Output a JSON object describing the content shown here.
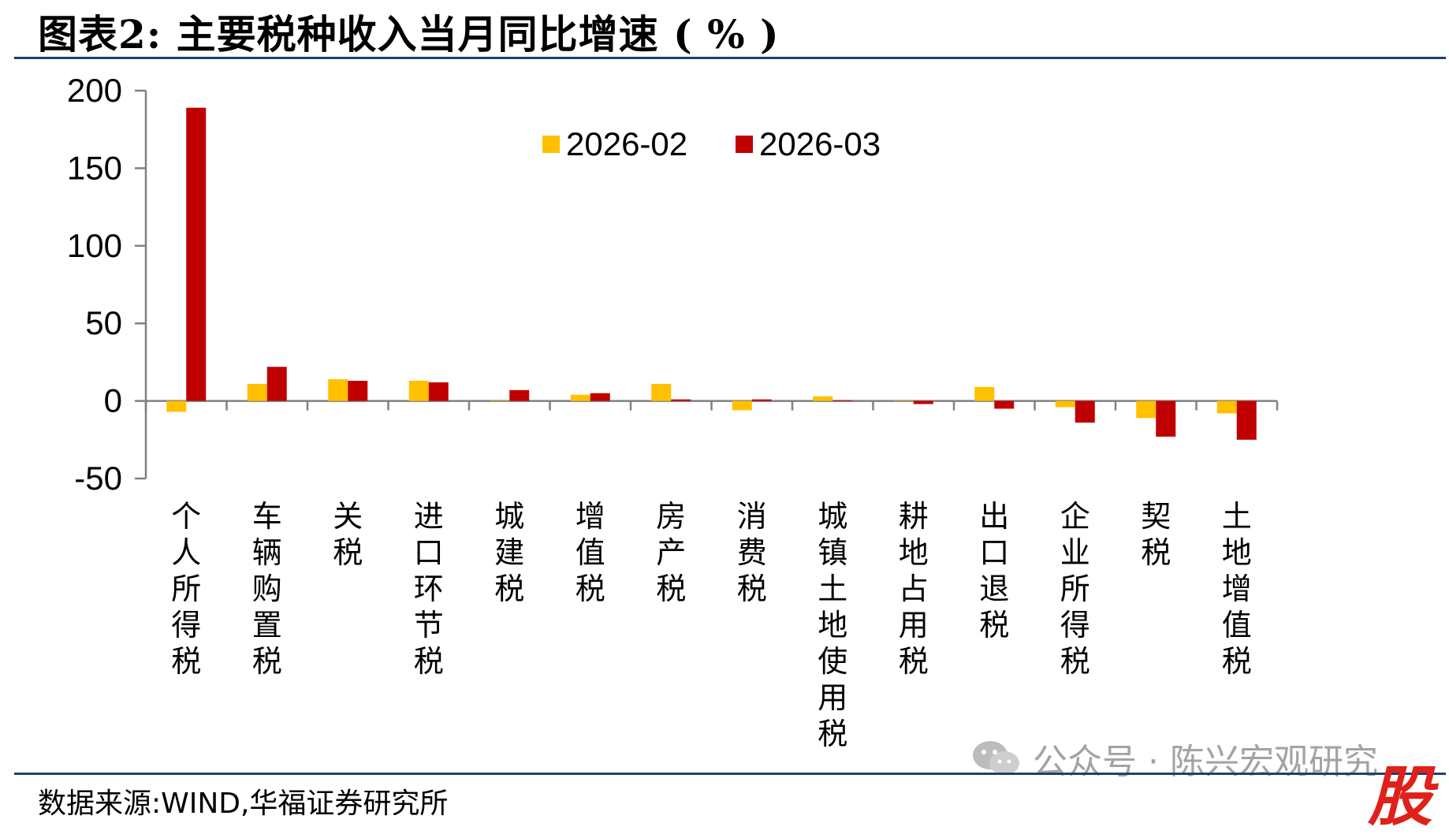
{
  "title": "图表2:  主要税种收入当月同比增速 ( % )",
  "source": "数据来源:WIND,华福证券研究所",
  "watermark": {
    "text": "公众号 · 陈兴宏观研究",
    "icon": "wechat-icon"
  },
  "corner_glyph": "股",
  "colors": {
    "series1": "#FFC000",
    "series2": "#C00000",
    "rule": "#1F3F74",
    "axis": "#808080"
  },
  "chart_data": {
    "type": "bar",
    "title": "",
    "xlabel": "",
    "ylabel": "",
    "ylim": [
      -50,
      200
    ],
    "yticks": [
      200,
      150,
      100,
      50,
      0,
      -50
    ],
    "grid": false,
    "legend_position": "top-center",
    "categories": [
      "个人所得税",
      "车辆购置税",
      "关税",
      "进口环节税",
      "城建税",
      "增值税",
      "房产税",
      "消费税",
      "城镇土地使用税",
      "耕地占用税",
      "出口退税",
      "企业所得税",
      "契税",
      "土地增值税"
    ],
    "series": [
      {
        "name": "2026-02",
        "values": [
          -7,
          11,
          14,
          13,
          0,
          4,
          11,
          -6,
          3,
          0,
          9,
          -4,
          -11,
          -8
        ]
      },
      {
        "name": "2026-03",
        "values": [
          189,
          22,
          13,
          12,
          7,
          5,
          1,
          1,
          0.5,
          -2,
          -5,
          -14,
          -23,
          -25
        ]
      }
    ]
  }
}
